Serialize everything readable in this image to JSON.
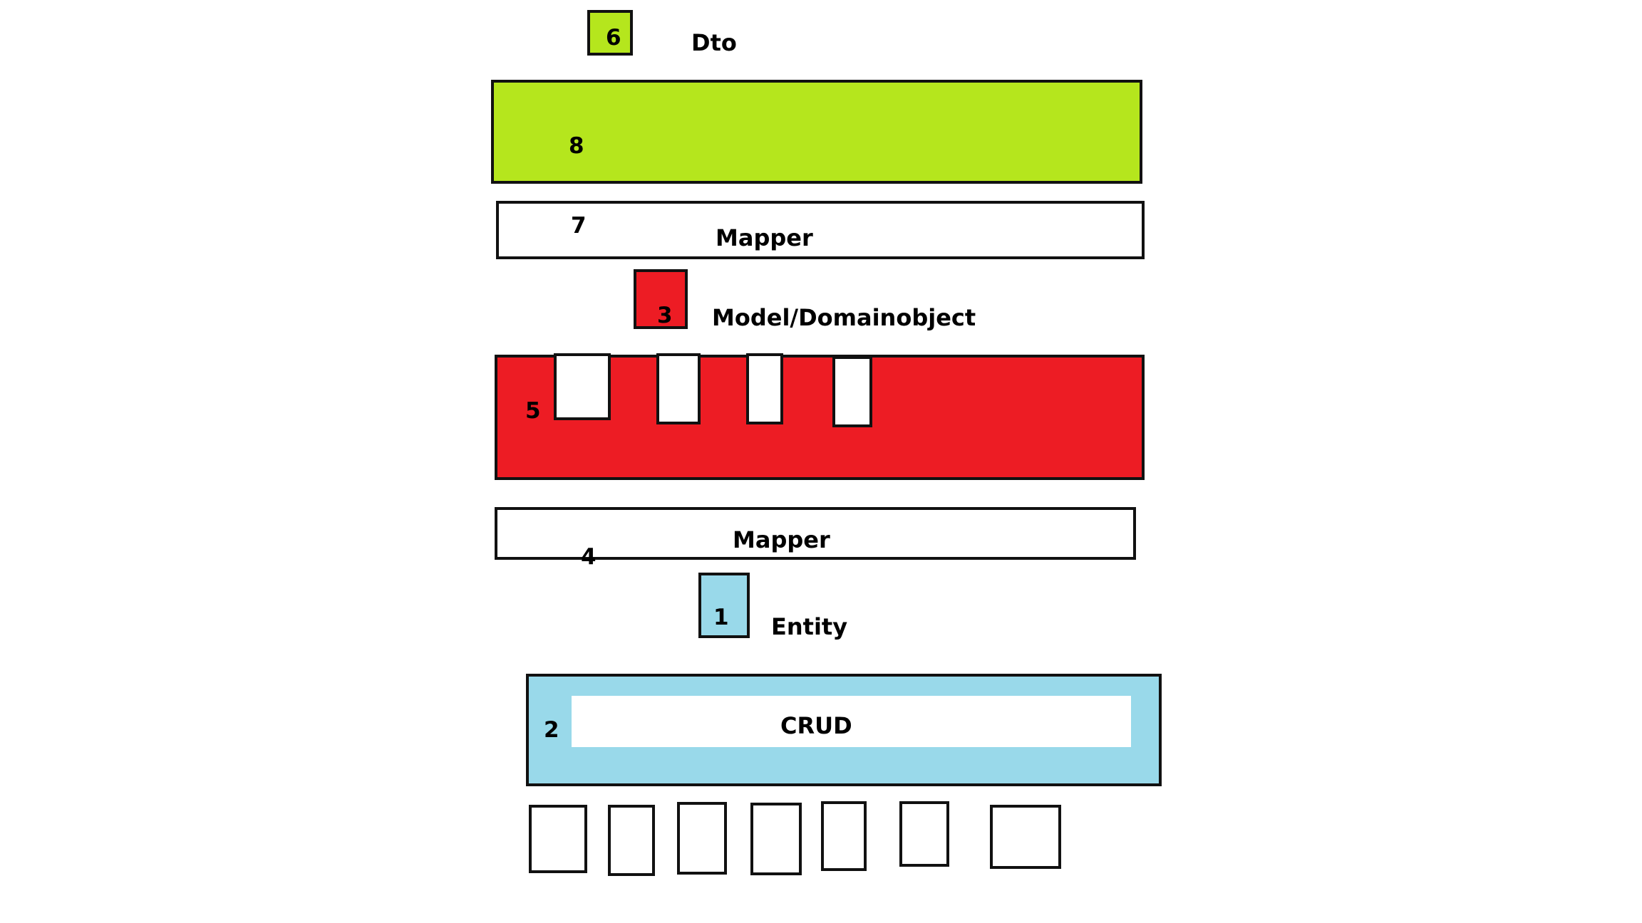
{
  "colors": {
    "green": "#b5e61d",
    "red": "#ed1c24",
    "blue": "#99d9ea",
    "white": "#ffffff",
    "outline": "#111111"
  },
  "labels": {
    "dto": "Dto",
    "mapper_top": "Mapper",
    "model": "Model/Domainobject",
    "mapper_bottom": "Mapper",
    "entity": "Entity",
    "crud": "CRUD"
  },
  "numbers": {
    "n1": "1",
    "n2": "2",
    "n3": "3",
    "n4": "4",
    "n5": "5",
    "n6": "6",
    "n7": "7",
    "n8": "8"
  }
}
